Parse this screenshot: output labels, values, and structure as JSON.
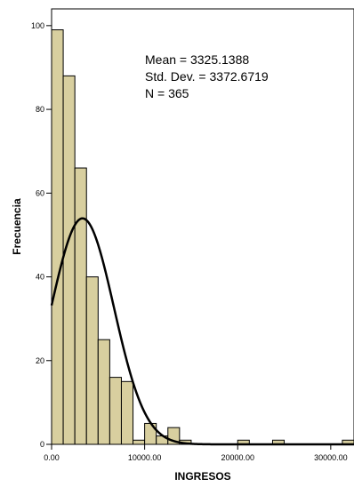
{
  "chart_data": {
    "type": "bar",
    "subtype": "histogram",
    "xlabel": "INGRESOS",
    "ylabel": "Frecuencia",
    "xlim": [
      0,
      32500
    ],
    "ylim": [
      0,
      104
    ],
    "x_ticks": [
      0,
      10000,
      20000,
      30000
    ],
    "x_tick_labels": [
      "0.00",
      "10000.00",
      "20000.00",
      "30000.00"
    ],
    "y_ticks": [
      0,
      20,
      40,
      60,
      80,
      100
    ],
    "y_tick_labels": [
      "0",
      "20",
      "40",
      "60",
      "80",
      "100"
    ],
    "bin_width": 1250,
    "bin_starts": [
      0,
      1250,
      2500,
      3750,
      5000,
      6250,
      7500,
      8750,
      10000,
      11250,
      12500,
      13750,
      15000,
      16250,
      17500,
      18750,
      20000,
      21250,
      22500,
      23750,
      25000,
      26250,
      27500,
      28750,
      30000,
      31250
    ],
    "values": [
      99,
      88,
      66,
      40,
      25,
      16,
      15,
      1,
      5,
      2,
      4,
      1,
      0,
      0,
      0,
      0,
      1,
      0,
      0,
      1,
      0,
      0,
      0,
      0,
      0,
      1
    ],
    "normal_curve": {
      "mean": 3325.1388,
      "std": 3372.6719,
      "n": 365
    },
    "colors": {
      "bar_fill": "#d8cf9f",
      "bar_stroke": "#000000",
      "curve": "#000000"
    },
    "grid": false,
    "legend": "none"
  },
  "stats": {
    "mean": "Mean = 3325.1388",
    "std": "Std. Dev. = 3372.6719",
    "n": "N = 365"
  }
}
